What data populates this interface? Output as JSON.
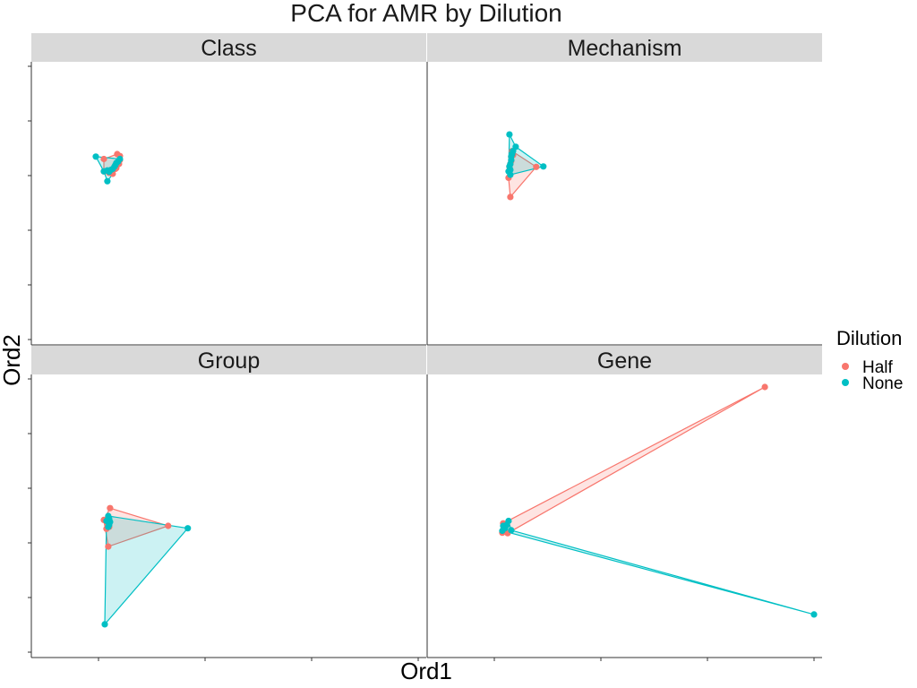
{
  "chart_data": {
    "type": "scatter",
    "title": "PCA for AMR by Dilution",
    "xlabel": "Ord1",
    "ylabel": "Ord2",
    "grid": false,
    "facet_order": [
      "Class",
      "Mechanism",
      "Group",
      "Gene"
    ],
    "legend": {
      "title": "Dilution",
      "placement": "right",
      "entries": [
        {
          "name": "Half",
          "color": "#F8766D"
        },
        {
          "name": "None",
          "color": "#00BFC4"
        }
      ]
    },
    "xlim": [
      -0.31,
      3.38
    ],
    "ylim": [
      -2.42,
      2.82
    ],
    "facets": [
      {
        "label": "Class",
        "series": [
          {
            "name": "Half",
            "color": "#F8766D",
            "hull": [
              [
                0.01,
                1.2
              ],
              [
                0.04,
                1.16
              ],
              [
                0.03,
                1.0
              ],
              [
                0.0,
                0.9
              ],
              [
                -0.04,
                0.8
              ],
              [
                -0.14,
                0.85
              ],
              [
                -0.14,
                1.1
              ]
            ],
            "points": [
              [
                0.01,
                1.2
              ],
              [
                0.04,
                1.16
              ],
              [
                0.04,
                1.08
              ],
              [
                0.03,
                1.0
              ],
              [
                0.0,
                0.98
              ],
              [
                0.0,
                0.92
              ],
              [
                -0.01,
                0.9
              ],
              [
                -0.04,
                0.8
              ],
              [
                -0.08,
                0.82
              ],
              [
                -0.14,
                0.85
              ],
              [
                -0.14,
                1.1
              ]
            ]
          },
          {
            "name": "None",
            "color": "#00BFC4",
            "hull": [
              [
                -0.23,
                1.15
              ],
              [
                0.04,
                1.1
              ],
              [
                -0.02,
                0.9
              ],
              [
                -0.03,
                0.82
              ],
              [
                -0.1,
                0.65
              ],
              [
                -0.14,
                0.85
              ]
            ],
            "points": [
              [
                -0.23,
                1.15
              ],
              [
                0.04,
                1.1
              ],
              [
                0.02,
                1.05
              ],
              [
                0.0,
                1.02
              ],
              [
                -0.01,
                0.98
              ],
              [
                -0.02,
                0.95
              ],
              [
                -0.04,
                0.9
              ],
              [
                -0.06,
                0.88
              ],
              [
                -0.1,
                0.87
              ],
              [
                -0.08,
                0.84
              ],
              [
                -0.1,
                0.65
              ],
              [
                -0.14,
                0.85
              ]
            ]
          }
        ]
      },
      {
        "label": "Mechanism",
        "series": [
          {
            "name": "Half",
            "color": "#F8766D",
            "hull": [
              [
                0.0,
                1.26
              ],
              [
                0.27,
                0.94
              ],
              [
                -0.02,
                0.33
              ],
              [
                -0.04,
                0.72
              ]
            ],
            "points": [
              [
                0.0,
                1.26
              ],
              [
                0.01,
                1.18
              ],
              [
                -0.01,
                1.14
              ],
              [
                -0.01,
                1.06
              ],
              [
                -0.02,
                1.0
              ],
              [
                -0.03,
                0.94
              ],
              [
                -0.03,
                0.86
              ],
              [
                -0.04,
                0.72
              ],
              [
                -0.02,
                0.33
              ],
              [
                0.27,
                0.94
              ]
            ]
          },
          {
            "name": "None",
            "color": "#00BFC4",
            "hull": [
              [
                -0.03,
                1.6
              ],
              [
                0.04,
                1.35
              ],
              [
                0.35,
                0.95
              ],
              [
                -0.02,
                0.78
              ],
              [
                -0.04,
                0.85
              ]
            ],
            "points": [
              [
                -0.03,
                1.6
              ],
              [
                0.04,
                1.35
              ],
              [
                0.01,
                1.26
              ],
              [
                0.0,
                1.2
              ],
              [
                -0.01,
                1.15
              ],
              [
                -0.01,
                1.08
              ],
              [
                -0.02,
                1.0
              ],
              [
                -0.03,
                0.95
              ],
              [
                -0.02,
                0.88
              ],
              [
                -0.02,
                0.78
              ],
              [
                -0.04,
                0.85
              ],
              [
                0.35,
                0.95
              ]
            ]
          }
        ]
      },
      {
        "label": "Group",
        "series": [
          {
            "name": "Half",
            "color": "#F8766D",
            "hull": [
              [
                -0.07,
                0.36
              ],
              [
                0.58,
                0.0
              ],
              [
                -0.09,
                -0.42
              ],
              [
                -0.14,
                0.12
              ]
            ],
            "points": [
              [
                -0.07,
                0.36
              ],
              [
                -0.14,
                0.12
              ],
              [
                -0.11,
                0.08
              ],
              [
                -0.1,
                0.02
              ],
              [
                -0.08,
                -0.02
              ],
              [
                -0.11,
                -0.06
              ],
              [
                -0.09,
                -0.42
              ],
              [
                0.58,
                0.0
              ]
            ]
          },
          {
            "name": "None",
            "color": "#00BFC4",
            "hull": [
              [
                -0.09,
                0.2
              ],
              [
                0.8,
                -0.05
              ],
              [
                -0.13,
                -2.0
              ],
              [
                -0.11,
                0.1
              ]
            ],
            "points": [
              [
                -0.09,
                0.2
              ],
              [
                -0.08,
                0.14
              ],
              [
                -0.07,
                0.08
              ],
              [
                -0.08,
                0.02
              ],
              [
                -0.09,
                -0.02
              ],
              [
                -0.11,
                0.1
              ],
              [
                -0.13,
                -2.0
              ],
              [
                0.8,
                -0.05
              ]
            ]
          }
        ]
      },
      {
        "label": "Gene",
        "series": [
          {
            "name": "Half",
            "color": "#F8766D",
            "hull": [
              [
                -0.1,
                0.05
              ],
              [
                2.83,
                2.82
              ],
              [
                -0.05,
                -0.15
              ],
              [
                -0.11,
                -0.14
              ]
            ],
            "points": [
              [
                -0.1,
                0.05
              ],
              [
                -0.06,
                0.02
              ],
              [
                -0.09,
                -0.05
              ],
              [
                -0.05,
                -0.15
              ],
              [
                -0.11,
                -0.14
              ],
              [
                2.83,
                2.82
              ]
            ]
          },
          {
            "name": "None",
            "color": "#00BFC4",
            "hull": [
              [
                -0.1,
                0.0
              ],
              [
                -0.04,
                0.1
              ],
              [
                -0.01,
                -0.09
              ],
              [
                3.38,
                -1.8
              ],
              [
                -0.11,
                -0.1
              ]
            ],
            "points": [
              [
                -0.1,
                0.0
              ],
              [
                -0.04,
                0.1
              ],
              [
                -0.06,
                0.02
              ],
              [
                -0.08,
                -0.05
              ],
              [
                -0.01,
                -0.09
              ],
              [
                -0.11,
                -0.1
              ],
              [
                3.38,
                -1.8
              ]
            ]
          }
        ]
      }
    ]
  }
}
